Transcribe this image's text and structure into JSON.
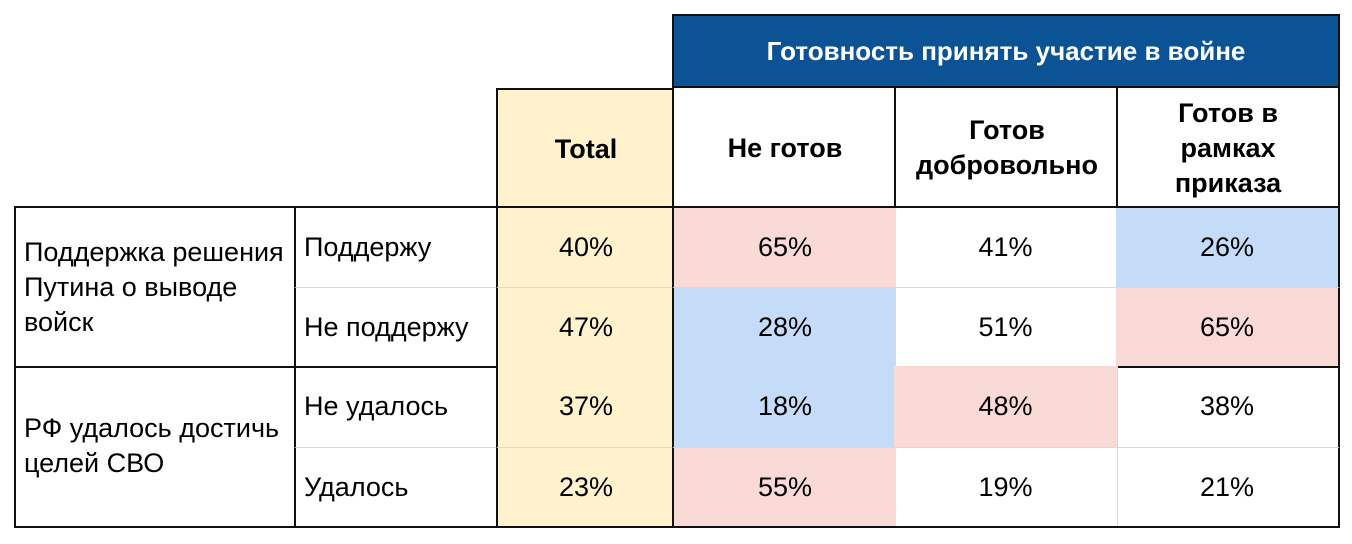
{
  "band_title": "Готовность принять участие в войне",
  "columns": {
    "total": "Total",
    "not_ready": "Не готов",
    "voluntary": "Готов добровольно",
    "by_order": "Готов в рамках приказа"
  },
  "groups": [
    {
      "label": "Поддержка решения Путина о выводе войск",
      "rows": [
        {
          "label": "Поддержу",
          "total": "40%",
          "not_ready": "65%",
          "voluntary": "41%",
          "by_order": "26%"
        },
        {
          "label": "Не поддержу",
          "total": "47%",
          "not_ready": "28%",
          "voluntary": "51%",
          "by_order": "65%"
        }
      ]
    },
    {
      "label": "РФ удалось достичь целей СВО",
      "rows": [
        {
          "label": "Не удалось",
          "total": "37%",
          "not_ready": "18%",
          "voluntary": "48%",
          "by_order": "38%"
        },
        {
          "label": "Удалось",
          "total": "23%",
          "not_ready": "55%",
          "voluntary": "19%",
          "by_order": "21%"
        }
      ]
    }
  ],
  "colors": {
    "band": "#0b5394",
    "total_column": "#fff2cc",
    "highlight_red": "#f9dad6",
    "highlight_blue": "#c5dcf8"
  }
}
